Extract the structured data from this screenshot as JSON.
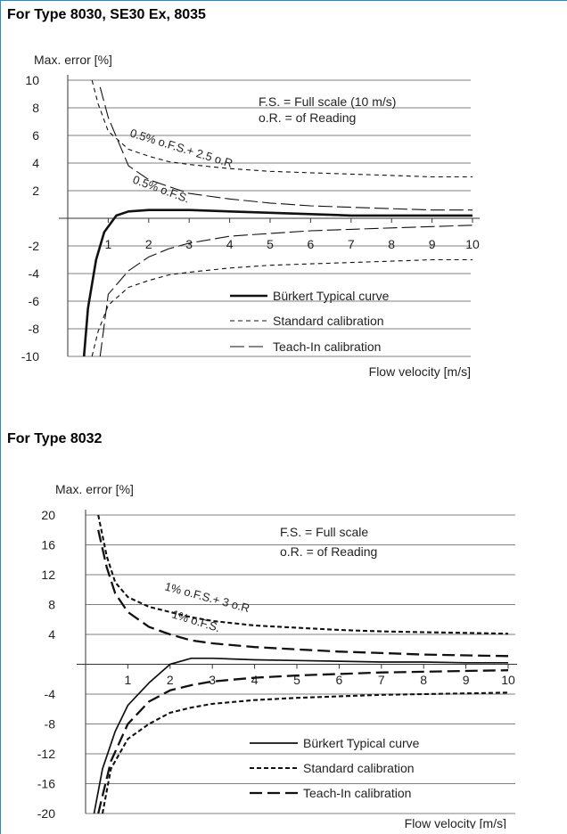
{
  "sections": [
    {
      "heading": "For Type 8030, SE30 Ex, 8035"
    },
    {
      "heading": "For Type 8032"
    }
  ],
  "chart_data": [
    {
      "type": "line",
      "title": "",
      "ylabel": "Max. error [%]",
      "xlabel": "Flow velocity [m/s]",
      "xlim": [
        0,
        10
      ],
      "ylim": [
        -10,
        10
      ],
      "xticks": [
        "1",
        "2",
        "3",
        "4",
        "5",
        "6",
        "7",
        "8",
        "9",
        "10"
      ],
      "yticks": [
        "10",
        "8",
        "6",
        "4",
        "2",
        "-2",
        "-4",
        "-6",
        "-8",
        "-10"
      ],
      "grid": "horizontal",
      "notes": [
        "F.S. =  Full scale (10 m/s)",
        "o.R. = of Reading"
      ],
      "annotations": [
        "0.5% o.F.S.+ 2.5 o.R",
        "0.5% o.F.S."
      ],
      "legend": [
        {
          "label": "Bürkert Typical curve",
          "style": "thick-solid"
        },
        {
          "label": "Standard calibration",
          "style": "short-dash"
        },
        {
          "label": "Teach-In calibration",
          "style": "long-dash"
        }
      ],
      "series": [
        {
          "style": "thick-solid",
          "x": [
            0.4,
            0.5,
            0.7,
            0.9,
            1.2,
            1.5,
            2.0,
            2.5,
            3.0,
            4.0,
            5.0,
            6.0,
            7.0,
            8.0,
            9.0,
            10.0
          ],
          "y": [
            -10,
            -6.5,
            -3,
            -1,
            0.2,
            0.5,
            0.6,
            0.6,
            0.6,
            0.5,
            0.4,
            0.3,
            0.2,
            0.2,
            0.2,
            0.2
          ]
        },
        {
          "style": "short-dash",
          "x": [
            0.6,
            0.75,
            1,
            1.5,
            2,
            2.5,
            3,
            4,
            5,
            6,
            7,
            8,
            9,
            10
          ],
          "y": [
            10,
            8.3,
            6.3,
            5,
            4.5,
            4.1,
            3.9,
            3.6,
            3.4,
            3.3,
            3.2,
            3.1,
            3,
            3
          ]
        },
        {
          "style": "long-dash",
          "x": [
            0.8,
            1,
            1.5,
            2,
            2.5,
            3,
            4,
            5,
            6,
            7,
            8,
            9,
            10
          ],
          "y": [
            9.5,
            7.3,
            3.8,
            2.8,
            2.3,
            1.8,
            1.4,
            1.1,
            0.9,
            0.8,
            0.7,
            0.6,
            0.6
          ]
        },
        {
          "style": "short-dash",
          "x": [
            0.6,
            0.75,
            1,
            1.5,
            2,
            2.5,
            3,
            4,
            5,
            6,
            7,
            8,
            9,
            10
          ],
          "y": [
            -10,
            -8.2,
            -6.3,
            -5,
            -4.5,
            -4.1,
            -3.9,
            -3.6,
            -3.4,
            -3.3,
            -3.2,
            -3.1,
            -3,
            -3
          ]
        },
        {
          "style": "long-dash",
          "x": [
            0.8,
            1,
            1.5,
            2,
            2.5,
            3,
            4,
            5,
            6,
            7,
            8,
            9,
            10
          ],
          "y": [
            -10,
            -5.5,
            -3.8,
            -2.8,
            -2.2,
            -1.8,
            -1.3,
            -1.1,
            -0.9,
            -0.8,
            -0.7,
            -0.6,
            -0.5
          ]
        }
      ]
    },
    {
      "type": "line",
      "title": "",
      "ylabel": "Max. error [%]",
      "xlabel": "Flow velocity [m/s]",
      "xlim": [
        0,
        10
      ],
      "ylim": [
        -20,
        20
      ],
      "xticks": [
        "1",
        "2",
        "3",
        "4",
        "5",
        "6",
        "7",
        "8",
        "9",
        "10"
      ],
      "yticks": [
        "20",
        "16",
        "12",
        "8",
        "4",
        "-4",
        "-8",
        "-12",
        "-16",
        "-20"
      ],
      "grid": "horizontal",
      "notes": [
        "F.S. =  Full scale",
        "o.R. = of Reading"
      ],
      "annotations": [
        "1% o.F.S.+ 3 o.R",
        "1% o.F.S."
      ],
      "legend": [
        {
          "label": "Bürkert Typical curve",
          "style": "solid"
        },
        {
          "label": "Standard calibration",
          "style": "bold-short-dash"
        },
        {
          "label": "Teach-In calibration",
          "style": "bold-long-dash"
        }
      ],
      "series": [
        {
          "style": "solid",
          "x": [
            0.2,
            0.4,
            0.7,
            1,
            1.5,
            2,
            2.5,
            3,
            4,
            5,
            6,
            7,
            8,
            9,
            10
          ],
          "y": [
            -20,
            -14,
            -9,
            -5.5,
            -2.5,
            0,
            0.8,
            0.8,
            0.6,
            0.5,
            0.4,
            0.3,
            0.3,
            0.2,
            0.2
          ]
        },
        {
          "style": "bold-short-dash",
          "x": [
            0.3,
            0.5,
            0.7,
            1,
            1.5,
            2,
            2.5,
            3,
            4,
            5,
            6,
            7,
            8,
            9,
            10
          ],
          "y": [
            20,
            14.5,
            11,
            9,
            7.7,
            7,
            6.3,
            5.8,
            5.2,
            4.9,
            4.6,
            4.4,
            4.3,
            4.2,
            4.1
          ]
        },
        {
          "style": "bold-long-dash",
          "x": [
            0.3,
            0.5,
            0.7,
            1,
            1.5,
            2,
            2.5,
            3,
            4,
            5,
            6,
            7,
            8,
            9,
            10
          ],
          "y": [
            18,
            13,
            9.5,
            7,
            5,
            4,
            3.2,
            2.8,
            2.3,
            2,
            1.7,
            1.5,
            1.3,
            1.2,
            1.1
          ]
        },
        {
          "style": "bold-short-dash",
          "x": [
            0.4,
            0.6,
            0.8,
            1,
            1.5,
            2,
            2.5,
            3,
            4,
            5,
            6,
            7,
            8,
            9,
            10
          ],
          "y": [
            -20,
            -14,
            -12,
            -10,
            -8,
            -6.5,
            -5.8,
            -5.3,
            -4.8,
            -4.5,
            -4.3,
            -4.1,
            -4,
            -3.9,
            -3.8
          ]
        },
        {
          "style": "bold-long-dash",
          "x": [
            0.3,
            0.6,
            1,
            1.5,
            2,
            2.5,
            3,
            4,
            5,
            6,
            7,
            8,
            9,
            10
          ],
          "y": [
            -20,
            -13,
            -8,
            -5,
            -3.5,
            -2.8,
            -2.3,
            -1.8,
            -1.5,
            -1.3,
            -1.1,
            -1,
            -0.9,
            -0.8
          ]
        }
      ]
    }
  ]
}
